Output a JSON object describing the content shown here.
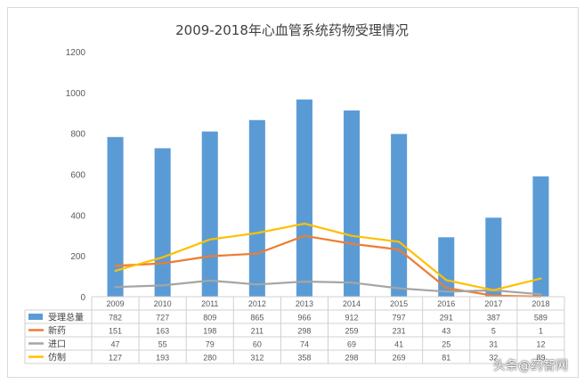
{
  "chart_data": {
    "type": "bar",
    "title": "2009-2018年心血管系统药物受理情况",
    "categories": [
      "2009",
      "2010",
      "2011",
      "2012",
      "2013",
      "2014",
      "2015",
      "2016",
      "2017",
      "2018"
    ],
    "ylim": [
      0,
      1200
    ],
    "yticks": [
      "0",
      "200",
      "400",
      "600",
      "800",
      "1000",
      "1200"
    ],
    "series": [
      {
        "name": "受理总量",
        "kind": "bar",
        "color": "#5b9bd5",
        "values": [
          782,
          727,
          809,
          865,
          966,
          912,
          797,
          291,
          387,
          589
        ]
      },
      {
        "name": "新药",
        "kind": "line",
        "color": "#ed7d31",
        "values": [
          151,
          163,
          198,
          211,
          298,
          259,
          231,
          43,
          5,
          1
        ]
      },
      {
        "name": "进口",
        "kind": "line",
        "color": "#a5a5a5",
        "values": [
          47,
          55,
          79,
          60,
          74,
          69,
          41,
          25,
          31,
          12
        ]
      },
      {
        "name": "仿制",
        "kind": "line",
        "color": "#ffc000",
        "values": [
          127,
          193,
          280,
          312,
          358,
          298,
          269,
          81,
          32,
          89
        ]
      }
    ],
    "grid": false,
    "legend": "data-table"
  },
  "watermark": "头条@药智网"
}
